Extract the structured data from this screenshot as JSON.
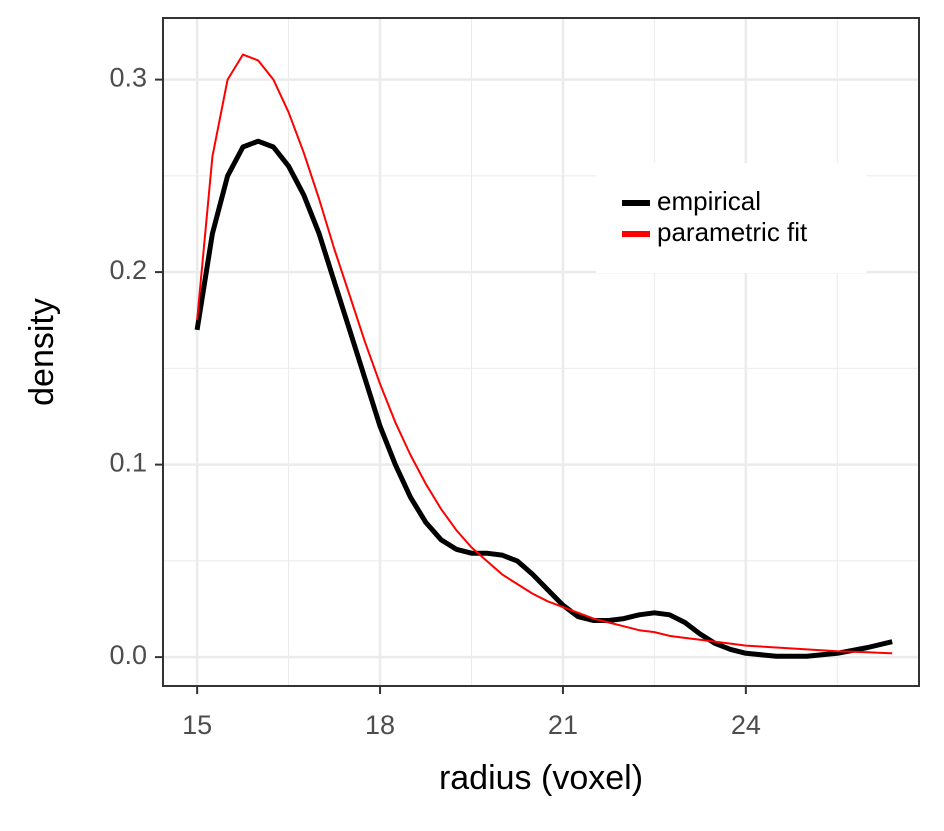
{
  "chart_data": {
    "type": "line",
    "xlabel": "radius (voxel)",
    "ylabel": "density",
    "x": [
      15,
      15.25,
      15.5,
      15.75,
      16,
      16.25,
      16.5,
      16.75,
      17,
      17.25,
      17.5,
      17.75,
      18,
      18.25,
      18.5,
      18.75,
      19,
      19.25,
      19.5,
      19.75,
      20,
      20.25,
      20.5,
      20.75,
      21,
      21.25,
      21.5,
      21.75,
      22,
      22.25,
      22.5,
      22.75,
      23,
      23.25,
      23.5,
      23.75,
      24,
      24.5,
      25,
      25.5,
      26,
      26.4
    ],
    "series": [
      {
        "name": "empirical",
        "color": "#000000",
        "width": 5,
        "values": [
          0.17,
          0.22,
          0.25,
          0.265,
          0.268,
          0.265,
          0.255,
          0.24,
          0.22,
          0.195,
          0.17,
          0.145,
          0.12,
          0.1,
          0.083,
          0.07,
          0.061,
          0.056,
          0.054,
          0.054,
          0.053,
          0.05,
          0.043,
          0.035,
          0.027,
          0.021,
          0.019,
          0.019,
          0.02,
          0.022,
          0.023,
          0.022,
          0.018,
          0.012,
          0.007,
          0.004,
          0.002,
          0.0005,
          0.0005,
          0.002,
          0.005,
          0.008
        ]
      },
      {
        "name": "parametric fit",
        "color": "#ff0000",
        "width": 2,
        "values": [
          0.175,
          0.26,
          0.3,
          0.313,
          0.31,
          0.3,
          0.283,
          0.262,
          0.238,
          0.212,
          0.188,
          0.164,
          0.142,
          0.122,
          0.105,
          0.09,
          0.077,
          0.066,
          0.057,
          0.05,
          0.043,
          0.038,
          0.033,
          0.029,
          0.026,
          0.023,
          0.02,
          0.018,
          0.016,
          0.014,
          0.013,
          0.011,
          0.01,
          0.009,
          0.008,
          0.007,
          0.006,
          0.005,
          0.004,
          0.003,
          0.0025,
          0.002
        ]
      }
    ],
    "xlim": [
      14.44,
      26.84
    ],
    "ylim": [
      -0.015,
      0.332
    ],
    "xticks": [
      15,
      18,
      21,
      24
    ],
    "yticks": [
      {
        "value": 0,
        "label": "0.0"
      },
      0.1,
      0.2,
      0.3
    ],
    "grid": true,
    "minor_grid": true,
    "legend": "top-right"
  }
}
